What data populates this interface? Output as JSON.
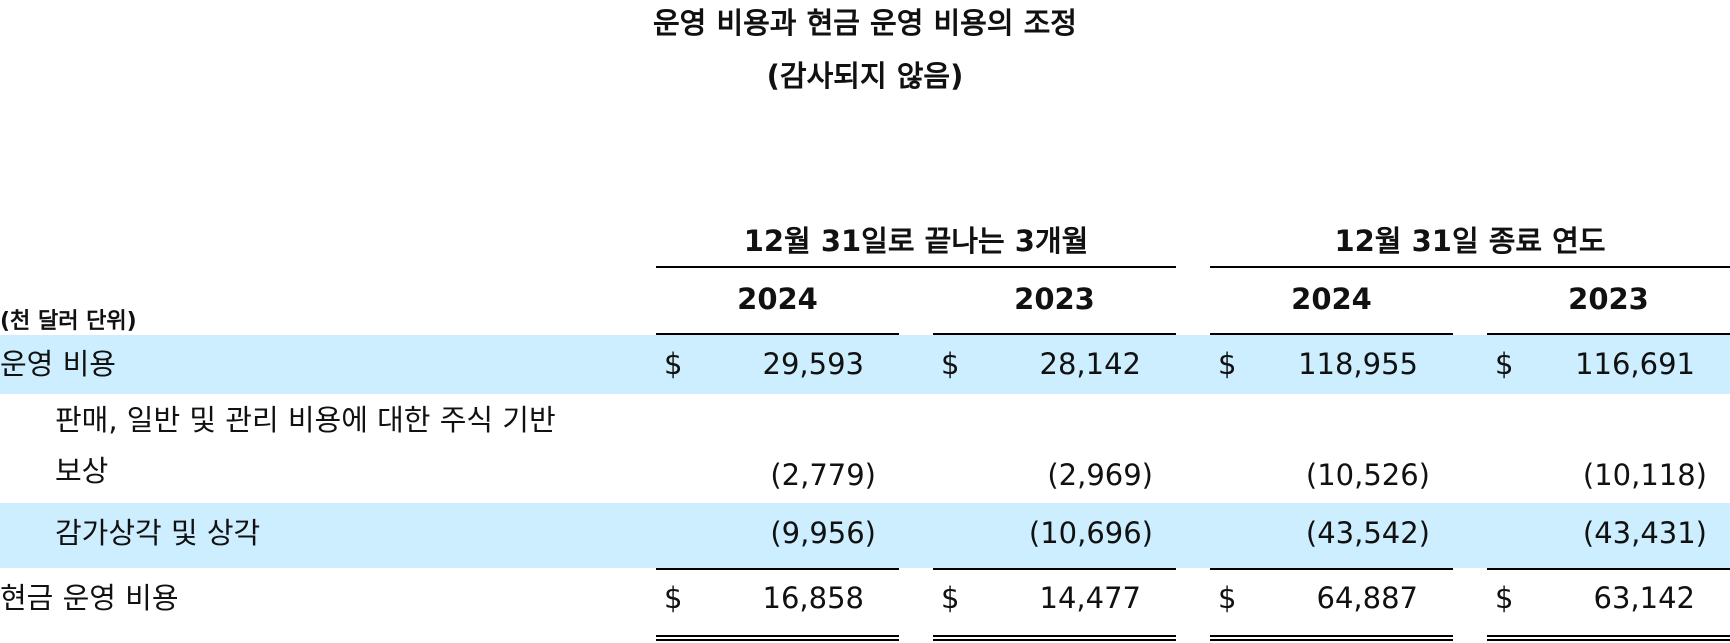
{
  "title": "운영 비용과 현금 운영 비용의 조정",
  "subtitle": "(감사되지 않음)",
  "units_label": "(천 달러 단위)",
  "periods": [
    {
      "label": "12월 31일로 끝나는 3개월",
      "years": [
        "2024",
        "2023"
      ]
    },
    {
      "label": "12월 31일 종료 연도",
      "years": [
        "2024",
        "2023"
      ]
    }
  ],
  "currency_symbol": "$",
  "rows": [
    {
      "label": "운영 비용",
      "values": [
        "29,593",
        "28,142",
        "118,955",
        "116,691"
      ],
      "dollar": true
    },
    {
      "label_line1": "판매, 일반 및 관리 비용에 대한 주식 기반",
      "label_line2": "보상",
      "values": [
        "(2,779)",
        "(2,969)",
        "(10,526)",
        "(10,118)"
      ],
      "dollar": false
    },
    {
      "label": "감가상각 및 상각",
      "values": [
        "(9,956)",
        "(10,696)",
        "(43,542)",
        "(43,431)"
      ],
      "dollar": false
    },
    {
      "label": "현금 운영 비용",
      "values": [
        "16,858",
        "14,477",
        "64,887",
        "63,142"
      ],
      "dollar": true
    }
  ],
  "colors": {
    "band": "#cdeeff",
    "text": "#111111"
  }
}
